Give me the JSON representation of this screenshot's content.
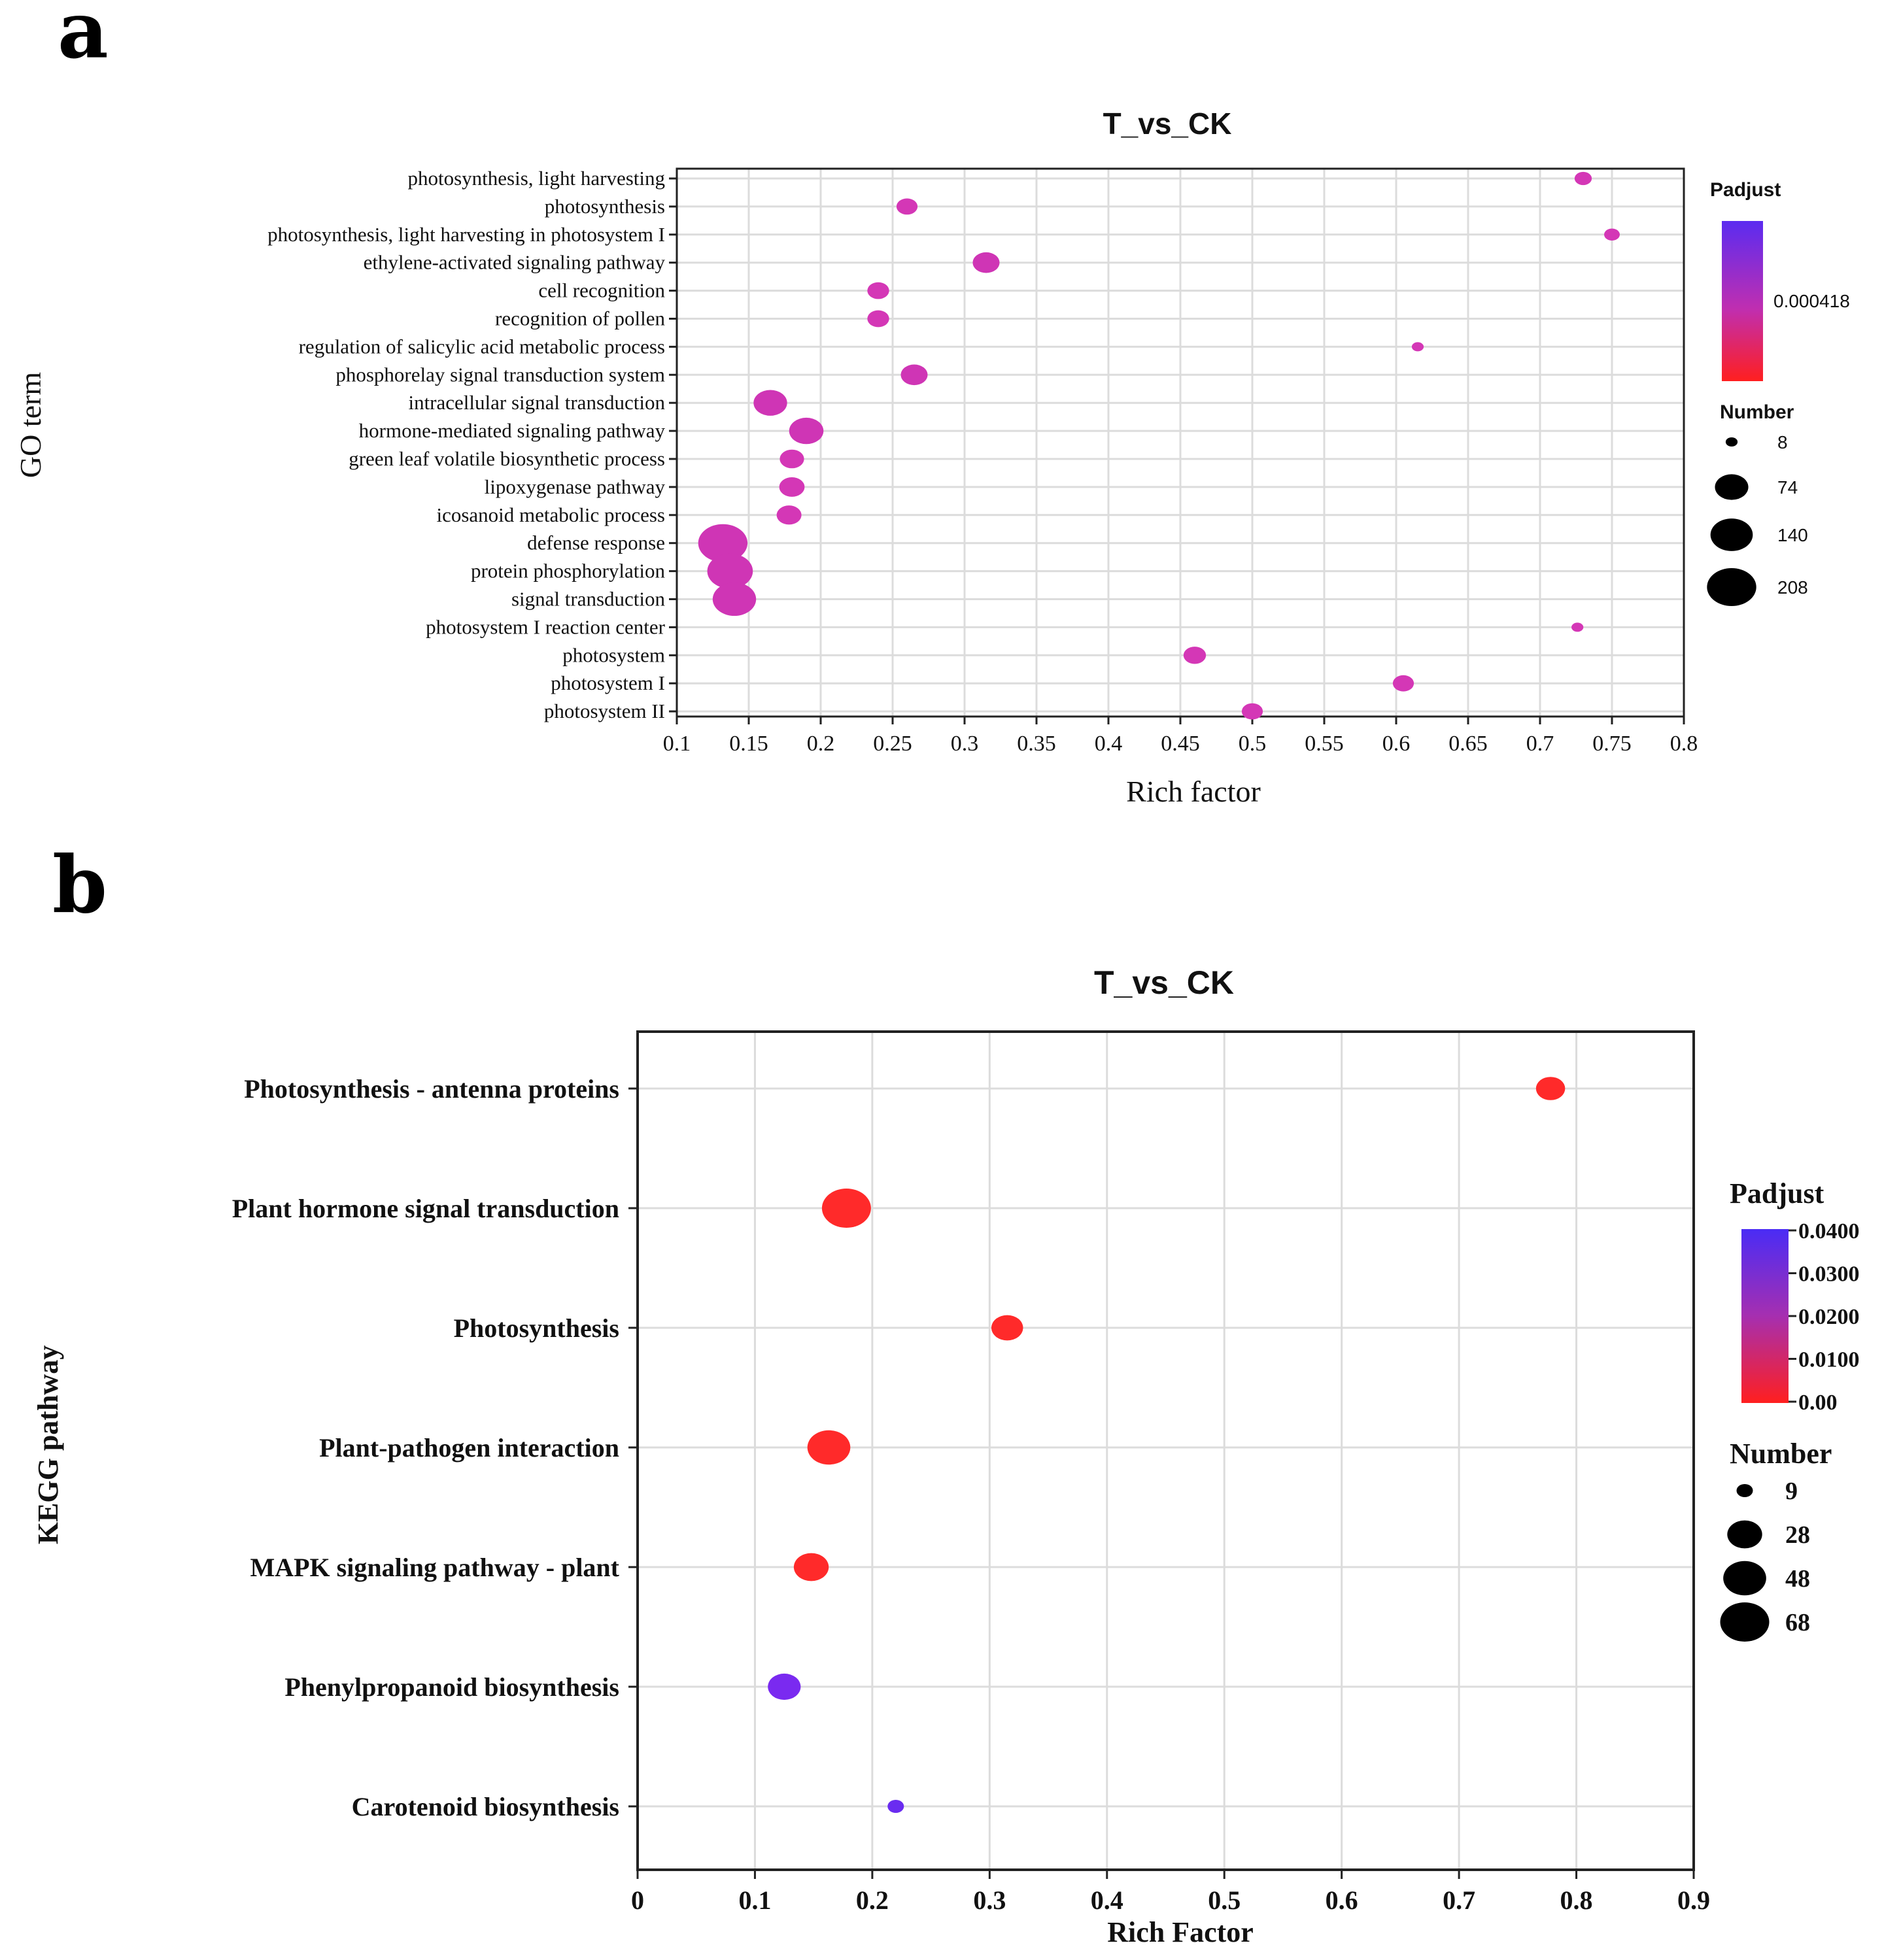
{
  "panels": [
    {
      "letter": "a",
      "chart_data": {
        "type": "scatter",
        "subtype": "bubble",
        "title": "T_vs_CK",
        "xlabel": "Rich factor",
        "ylabel": "GO term",
        "xlim": [
          0.1,
          0.8
        ],
        "xticks": [
          "0.1",
          "0.15",
          "0.2",
          "0.25",
          "0.3",
          "0.35",
          "0.4",
          "0.45",
          "0.5",
          "0.55",
          "0.6",
          "0.65",
          "0.7",
          "0.75",
          "0.8"
        ],
        "grid": true,
        "categories": [
          "photosynthesis, light harvesting",
          "photosynthesis",
          "photosynthesis, light harvesting in photosystem I",
          "ethylene-activated signaling pathway",
          "cell recognition",
          "recognition of pollen",
          "regulation of salicylic acid metabolic process",
          "phosphorelay signal transduction system",
          "intracellular signal transduction",
          "hormone-mediated signaling pathway",
          "green leaf volatile biosynthetic process",
          "lipoxygenase pathway",
          "icosanoid metabolic process",
          "defense response",
          "protein phosphorylation",
          "signal transduction",
          "photosystem I reaction center",
          "photosystem",
          "photosystem I",
          "photosystem II"
        ],
        "points": [
          {
            "x": 0.73,
            "number": 12,
            "color": "#d437b6"
          },
          {
            "x": 0.26,
            "number": 20,
            "color": "#d437b6"
          },
          {
            "x": 0.75,
            "number": 10,
            "color": "#d437b6"
          },
          {
            "x": 0.315,
            "number": 40,
            "color": "#cf35b5"
          },
          {
            "x": 0.24,
            "number": 22,
            "color": "#d437b6"
          },
          {
            "x": 0.24,
            "number": 22,
            "color": "#d437b6"
          },
          {
            "x": 0.615,
            "number": 8,
            "color": "#d437b6"
          },
          {
            "x": 0.265,
            "number": 40,
            "color": "#cf35b5"
          },
          {
            "x": 0.165,
            "number": 75,
            "color": "#cf35b5"
          },
          {
            "x": 0.19,
            "number": 80,
            "color": "#cf35b5"
          },
          {
            "x": 0.18,
            "number": 30,
            "color": "#d437b6"
          },
          {
            "x": 0.18,
            "number": 34,
            "color": "#d437b6"
          },
          {
            "x": 0.178,
            "number": 32,
            "color": "#d437b6"
          },
          {
            "x": 0.132,
            "number": 208,
            "color": "#cf35b5"
          },
          {
            "x": 0.137,
            "number": 170,
            "color": "#cf35b5"
          },
          {
            "x": 0.14,
            "number": 150,
            "color": "#cf35b5"
          },
          {
            "x": 0.726,
            "number": 8,
            "color": "#d437b6"
          },
          {
            "x": 0.46,
            "number": 24,
            "color": "#d437b6"
          },
          {
            "x": 0.605,
            "number": 20,
            "color": "#d437b6"
          },
          {
            "x": 0.5,
            "number": 20,
            "color": "#d437b6"
          }
        ],
        "legend": {
          "color_title": "Padjust",
          "color_label": "0.000418",
          "color_top": "#5b2cf0",
          "color_bottom": "#ff1f1f",
          "size_title": "Number",
          "size_items": [
            8,
            74,
            140,
            208
          ],
          "size_labels": [
            "8",
            "74",
            "140",
            "208"
          ]
        }
      }
    },
    {
      "letter": "b",
      "chart_data": {
        "type": "scatter",
        "subtype": "bubble",
        "title": "T_vs_CK",
        "xlabel": "Rich Factor",
        "ylabel": "KEGG pathway",
        "xlim": [
          0,
          0.9
        ],
        "xticks": [
          "0",
          "0.1",
          "0.2",
          "0.3",
          "0.4",
          "0.5",
          "0.6",
          "0.7",
          "0.8",
          "0.9"
        ],
        "grid": true,
        "categories": [
          "Photosynthesis - antenna proteins",
          "Plant hormone signal transduction",
          "Photosynthesis",
          "Plant-pathogen interaction",
          "MAPK signaling pathway - plant",
          "Phenylpropanoid biosynthesis",
          "Carotenoid biosynthesis"
        ],
        "points": [
          {
            "x": 0.778,
            "number": 18,
            "color": "#ff2a2a"
          },
          {
            "x": 0.178,
            "number": 68,
            "color": "#ff2a2a"
          },
          {
            "x": 0.315,
            "number": 22,
            "color": "#ff2a2a"
          },
          {
            "x": 0.163,
            "number": 48,
            "color": "#ff2a2a"
          },
          {
            "x": 0.148,
            "number": 28,
            "color": "#ff2a2a"
          },
          {
            "x": 0.125,
            "number": 24,
            "color": "#7a2af0"
          },
          {
            "x": 0.22,
            "number": 9,
            "color": "#6a2cf0"
          }
        ],
        "legend": {
          "color_title": "Padjust",
          "color_ticks": [
            "0.0400",
            "0.0300",
            "0.0200",
            "0.0100",
            "0.00"
          ],
          "color_top": "#4a2cf5",
          "color_bottom": "#ff1f1f",
          "size_title": "Number",
          "size_items": [
            9,
            28,
            48,
            68
          ],
          "size_labels": [
            "9",
            "28",
            "48",
            "68"
          ]
        }
      }
    }
  ]
}
